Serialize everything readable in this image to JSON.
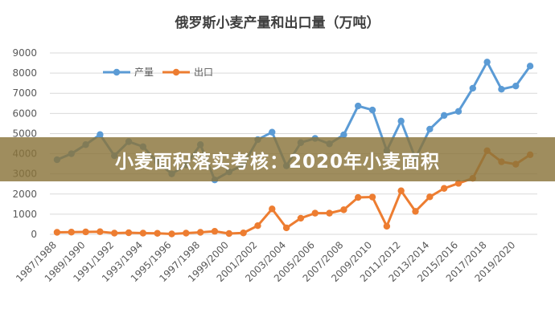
{
  "colors": {
    "production": "#5b9bd5",
    "export": "#ed7d31",
    "banner": "#8a743a"
  },
  "banner": {
    "text": "小麦面积落实考核：2020年小麦面积"
  },
  "chart_data": {
    "type": "line",
    "title": "俄罗斯小麦产量和出口量（万吨）",
    "xlabel": "",
    "ylabel": "",
    "ylim": [
      0,
      9000
    ],
    "yticks": [
      0,
      1000,
      2000,
      3000,
      4000,
      5000,
      6000,
      7000,
      8000,
      9000
    ],
    "grid": true,
    "legend_position": "top-left",
    "categories": [
      "1987/1988",
      "1988/1989",
      "1989/1990",
      "1990/1991",
      "1991/1992",
      "1992/1993",
      "1993/1994",
      "1994/1995",
      "1995/1996",
      "1996/1997",
      "1997/1998",
      "1998/1999",
      "1999/2000",
      "2000/2001",
      "2001/2002",
      "2002/2003",
      "2003/2004",
      "2004/2005",
      "2005/2006",
      "2006/2007",
      "2007/2008",
      "2008/2009",
      "2009/2010",
      "2010/2011",
      "2011/2012",
      "2012/2013",
      "2013/2014",
      "2014/2015",
      "2015/2016",
      "2016/2017",
      "2017/2018",
      "2018/2019",
      "2019/2020",
      "2020/2021"
    ],
    "x_tick_labels": [
      "1987/1988",
      "1989/1990",
      "1991/1992",
      "1993/1994",
      "1995/1996",
      "1997/1998",
      "1999/2000",
      "2001/2002",
      "2003/2004",
      "2005/2006",
      "2007/2008",
      "2009/2010",
      "2011/2012",
      "2013/2014",
      "2015/2016",
      "2017/2018",
      "2019/2020"
    ],
    "series": [
      {
        "name": "产量",
        "values": [
          3700,
          4000,
          4450,
          4950,
          3900,
          4600,
          4350,
          3600,
          3000,
          3450,
          4450,
          2700,
          3100,
          3450,
          4700,
          5070,
          3400,
          4550,
          4760,
          4490,
          4940,
          6370,
          6170,
          4150,
          5620,
          3770,
          5220,
          5900,
          6100,
          7250,
          8550,
          7200,
          7360,
          8350
        ]
      },
      {
        "name": "出口",
        "values": [
          100,
          110,
          120,
          130,
          60,
          80,
          60,
          50,
          20,
          60,
          100,
          150,
          40,
          70,
          430,
          1260,
          320,
          800,
          1050,
          1050,
          1220,
          1830,
          1850,
          400,
          2160,
          1140,
          1860,
          2280,
          2530,
          2780,
          4150,
          3600,
          3480,
          3950
        ]
      }
    ]
  }
}
